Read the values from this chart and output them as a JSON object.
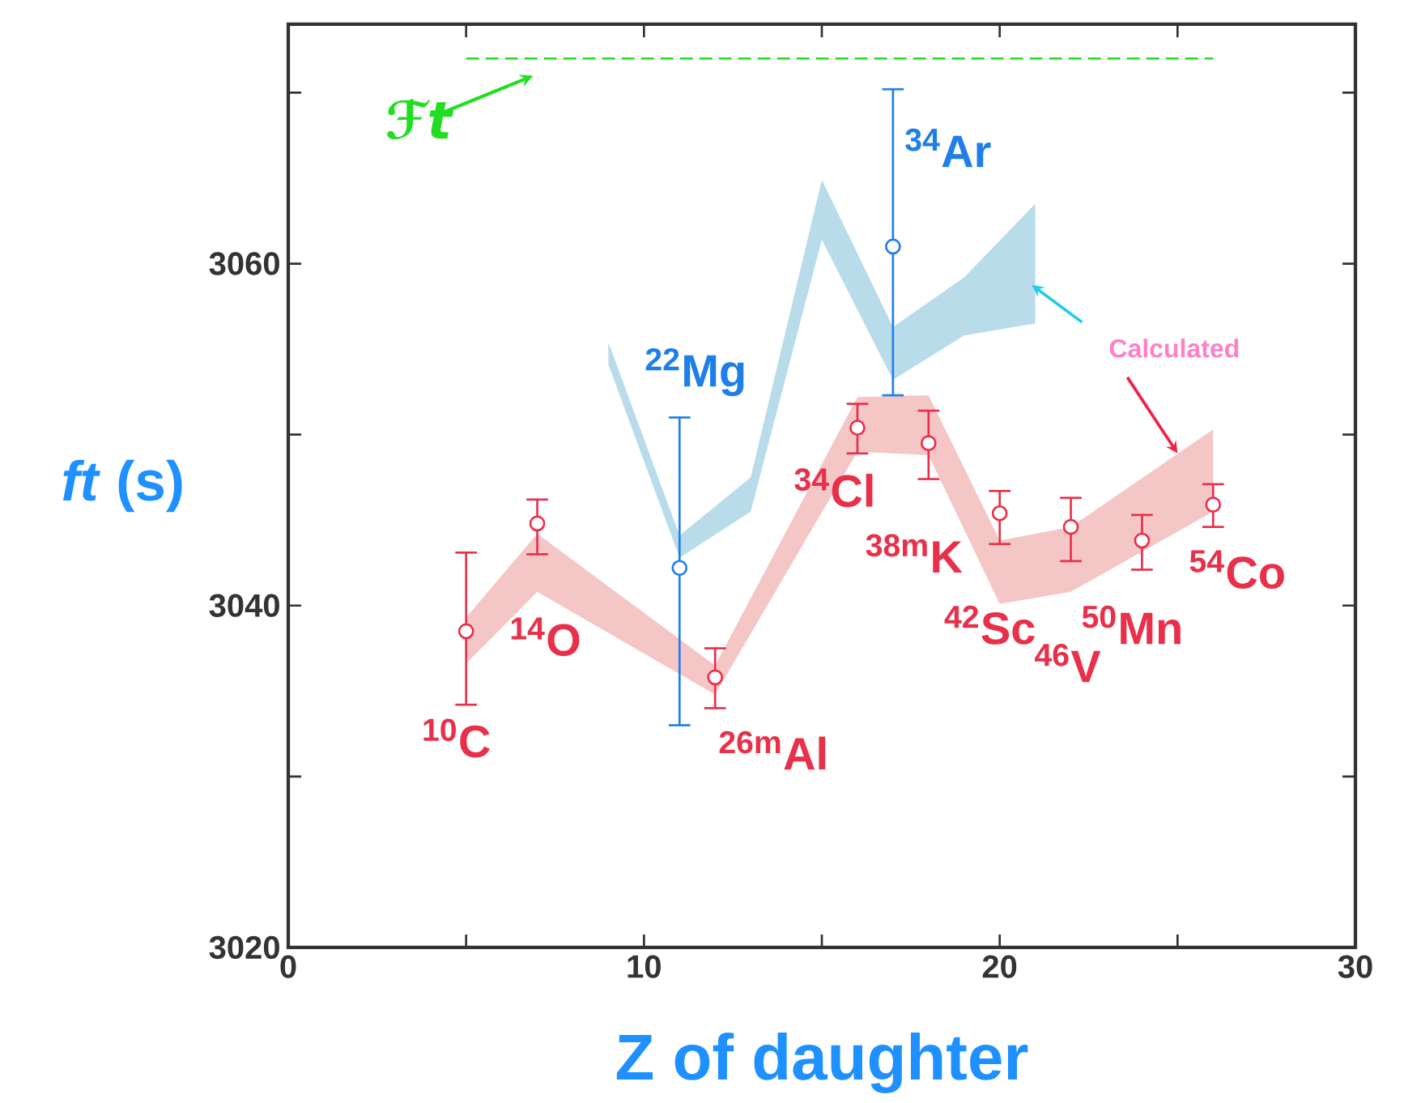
{
  "chart_data": {
    "type": "scatter",
    "xlabel": "Z of daughter",
    "ylabel": "*ft* (s)",
    "xlim": [
      0,
      30
    ],
    "ylim": [
      3020,
      3074
    ],
    "xticks": [
      0,
      {
        "value": 5,
        "label": null
      },
      10,
      {
        "value": 15,
        "label": null
      },
      20,
      {
        "value": 25,
        "label": null
      },
      30
    ],
    "yticks": [
      3020,
      {
        "value": 3030,
        "label": null
      },
      3040,
      {
        "value": 3050,
        "label": null
      },
      3060,
      {
        "value": 3070,
        "label": null
      }
    ],
    "grid": false,
    "series": [
      {
        "type": "line",
        "color": "#f5c6c6",
        "x": [
          5,
          7,
          12,
          16,
          18,
          20,
          22,
          26
        ],
        "values": [
          null,
          null,
          null,
          null,
          null,
          null,
          null,
          null
        ],
        "upper": [
          3039.3,
          3044.2,
          3036.5,
          3052.2,
          3052.3,
          3043.8,
          3044.6,
          3050.3
        ],
        "lower": [
          3036.6,
          3040.8,
          3034.8,
          3049.0,
          3048.8,
          3040.1,
          3040.8,
          3045.5
        ]
      },
      {
        "type": "line",
        "color": "#b8dcea",
        "x": [
          9,
          11,
          13,
          15,
          17,
          19,
          21
        ],
        "values": [
          null,
          null,
          null,
          null,
          null,
          null,
          null
        ],
        "upper": [
          3055.4,
          3044.1,
          3047.5,
          3064.9,
          3056.3,
          3059.2,
          3063.5
        ],
        "lower": [
          3054.1,
          3042.8,
          3045.5,
          3061.4,
          3053.2,
          3055.8,
          3056.5
        ]
      },
      {
        "marker": "circle",
        "color": "#e8304a",
        "x": [
          5,
          7,
          12,
          16,
          18,
          20,
          22,
          24,
          26
        ],
        "values": [
          3038.5,
          3044.8,
          3035.8,
          3050.4,
          3049.5,
          3045.4,
          3044.6,
          3043.8,
          3045.9
        ],
        "errors": [
          [
            3034.2,
            3043.1
          ],
          [
            3043.0,
            3046.2
          ],
          [
            3034.0,
            3037.5
          ],
          [
            3048.9,
            3051.8
          ],
          [
            3047.4,
            3051.4
          ],
          [
            3043.6,
            3046.7
          ],
          [
            3042.6,
            3046.3
          ],
          [
            3042.1,
            3045.3
          ],
          [
            3044.6,
            3047.1
          ]
        ]
      },
      {
        "marker": "circle",
        "color": "#1e7fe8",
        "x": [
          11,
          17
        ],
        "values": [
          3042.2,
          3061.0
        ],
        "errors": [
          [
            3033.0,
            3051.0
          ],
          [
            3052.3,
            3070.2
          ]
        ]
      }
    ],
    "ref_lines": [
      {
        "axis": "y",
        "value": 3072,
        "label": "ℱt",
        "color": "#22dd22",
        "line_style": "dashed"
      }
    ],
    "annotations": [
      {
        "text": "$^{10}$C",
        "x": 5,
        "y": 3038.5
      },
      {
        "text": "$^{14}$O",
        "x": 7,
        "y": 3044.8
      },
      {
        "text": "$^{26m}$Al",
        "x": 12,
        "y": 3035.8
      },
      {
        "text": "$^{34}$Cl",
        "x": 16,
        "y": 3050.4
      },
      {
        "text": "$^{38m}$K",
        "x": 18,
        "y": 3049.5
      },
      {
        "text": "$^{42}$Sc",
        "x": 20,
        "y": 3045.4
      },
      {
        "text": "$^{46}$V",
        "x": 22,
        "y": 3044.6
      },
      {
        "text": "$^{50}$Mn",
        "x": 24,
        "y": 3043.8
      },
      {
        "text": "$^{54}$Co",
        "x": 26,
        "y": 3045.9
      },
      {
        "text": "$^{22}$Mg",
        "x": 11,
        "y": 3051.0
      },
      {
        "text": "$^{34}$Ar",
        "x": 17,
        "y": 3061.0
      },
      {
        "text": "Calculated",
        "x": 25,
        "y": 3048.9
      }
    ]
  }
}
